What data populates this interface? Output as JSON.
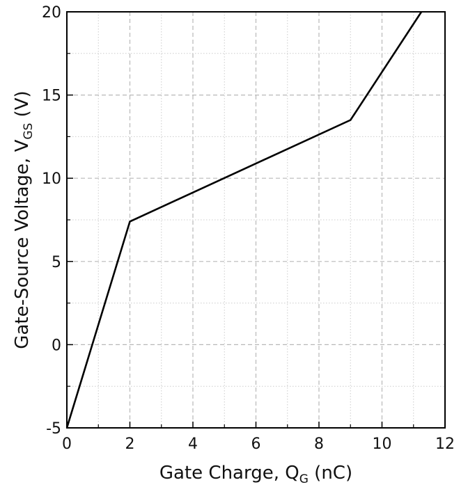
{
  "chart_data": {
    "type": "line",
    "xlabel": {
      "prefix": "Gate Charge, Q",
      "subscript": "G",
      "suffix": " (nC)"
    },
    "ylabel": {
      "prefix": "Gate-Source Voltage, V",
      "subscript": "GS",
      "suffix": " (V)"
    },
    "xlim": [
      0,
      12
    ],
    "ylim": [
      -5,
      20
    ],
    "xticks": [
      0,
      2,
      4,
      6,
      8,
      10,
      12
    ],
    "yticks": [
      -5,
      0,
      5,
      10,
      15,
      20
    ],
    "x_minor_step": 1,
    "y_minor_step": 2.5,
    "grid": {
      "major": "dashed",
      "minor": "dotted"
    },
    "series": [
      {
        "x": [
          0,
          2,
          9,
          11.25
        ],
        "y": [
          -5,
          7.4,
          13.5,
          20
        ]
      }
    ],
    "colors": {
      "line": "#000000",
      "grid_major": "#b8b8b8",
      "grid_minor": "#cccccc"
    }
  }
}
